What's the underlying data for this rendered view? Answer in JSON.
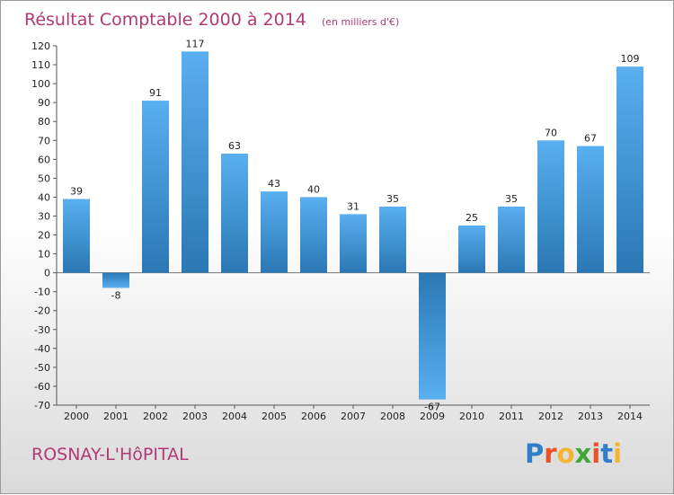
{
  "chart_data": {
    "type": "bar",
    "title": "Résultat Comptable 2000 à 2014",
    "subtitle": "(en milliers d'€)",
    "xlabel": "",
    "ylabel": "",
    "ylim": [
      -70,
      120
    ],
    "yticks": [
      120,
      110,
      100,
      90,
      80,
      70,
      60,
      50,
      40,
      30,
      20,
      10,
      0,
      -10,
      -20,
      -30,
      -40,
      -50,
      -60,
      -70
    ],
    "grid": false,
    "categories": [
      "2000",
      "2001",
      "2002",
      "2003",
      "2004",
      "2005",
      "2006",
      "2007",
      "2008",
      "2009",
      "2010",
      "2011",
      "2012",
      "2013",
      "2014"
    ],
    "values": [
      39,
      -8,
      91,
      117,
      63,
      43,
      40,
      31,
      35,
      -67,
      25,
      35,
      70,
      67,
      109
    ],
    "colors": {
      "bar_light": "#5aaff0",
      "bar_dark": "#2a78b4",
      "title": "#b03a73"
    }
  },
  "footer": {
    "location": "ROSNAY-L'HôPITAL",
    "logo_text": "Proxiti",
    "logo_colors": [
      "#2e7ec9",
      "#e8512a",
      "#f2b632",
      "#3fa535",
      "#e8512a",
      "#2e7ec9",
      "#f2b632"
    ]
  }
}
